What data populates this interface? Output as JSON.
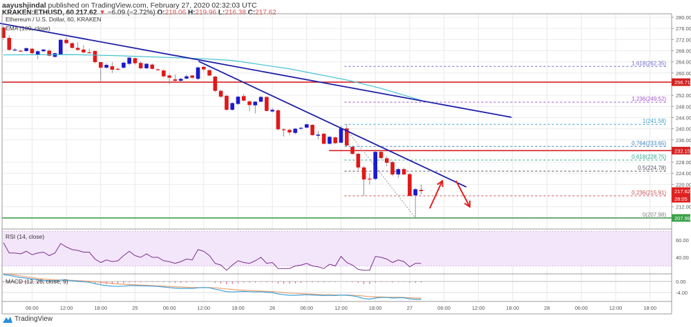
{
  "header": {
    "author": "aayushjindal",
    "published": "published on TradingView.com, February 27, 2020 02:32:03 UTC",
    "symbol": "KRAKEN:ETHUSD, 60",
    "last": "217.62",
    "change": "−6.09 (−2.72%)",
    "o_label": "O:",
    "o": "218.06",
    "h_label": "H:",
    "h": "219.96",
    "l_label": "L:",
    "l": "216.38",
    "c_label": "C:",
    "c": "217.62"
  },
  "footer": {
    "logo_text": "TradingView"
  },
  "chart_data": {
    "type": "candlestick",
    "title": "Ethereum / U.S. Dollar, 60, KRAKEN",
    "indicator_label": "EMA (100, close)",
    "ylim": [
      207,
      281
    ],
    "price_ticks": [
      212,
      220,
      224,
      228,
      236,
      240,
      244,
      248,
      252,
      260,
      264,
      268,
      272,
      276,
      280
    ],
    "candles_ohlc": [
      [
        276.3,
        277,
        272,
        272.6
      ],
      [
        272.6,
        273.5,
        268,
        268.3
      ],
      [
        268.4,
        269,
        267.8,
        268.4
      ],
      [
        268.0,
        268.3,
        267.6,
        267.9
      ],
      [
        267.9,
        269.2,
        267.5,
        268.9
      ],
      [
        268.7,
        269,
        266.8,
        267.1
      ],
      [
        266.6,
        268,
        265,
        267.8
      ],
      [
        267.8,
        268.6,
        267.5,
        268.4
      ],
      [
        268,
        268.5,
        266,
        266.2
      ],
      [
        265.8,
        267.3,
        265.5,
        267.1
      ],
      [
        266.6,
        272.2,
        266.4,
        271.9
      ],
      [
        271.9,
        272.8,
        270.5,
        270.7
      ],
      [
        270.7,
        271,
        268.8,
        269
      ],
      [
        269,
        271,
        268,
        268.3
      ],
      [
        268.4,
        270,
        267,
        267.4
      ],
      [
        267.4,
        268.8,
        267,
        267.35
      ],
      [
        267.9,
        268,
        263.5,
        263.9
      ],
      [
        263.9,
        264,
        257,
        261.9
      ],
      [
        261.9,
        263.5,
        261.5,
        262.9
      ],
      [
        262.4,
        264,
        260,
        261.2
      ],
      [
        261.5,
        261.9,
        261,
        261.45
      ],
      [
        261.9,
        264,
        261.5,
        263.7
      ],
      [
        263.3,
        265.8,
        262.8,
        265.5
      ],
      [
        265.3,
        265.5,
        263,
        263.5
      ],
      [
        263.6,
        264.2,
        261.4,
        261.7
      ],
      [
        261.7,
        263.5,
        261.4,
        263.3
      ],
      [
        263,
        263.4,
        261.2,
        261.5
      ],
      [
        261.3,
        261.6,
        260.8,
        261.0
      ],
      [
        260.9,
        261.3,
        258.4,
        258.8
      ],
      [
        259.1,
        259.6,
        256,
        258.3
      ],
      [
        257.7,
        259.5,
        256.5,
        257.2
      ],
      [
        257.2,
        258.2,
        256.8,
        257.9
      ],
      [
        258,
        259.5,
        257.8,
        258.8
      ],
      [
        259.1,
        259.3,
        258,
        258.3
      ],
      [
        257.9,
        262.3,
        257.4,
        262
      ],
      [
        262.2,
        262.5,
        260.6,
        261.3
      ],
      [
        261,
        261.3,
        258.8,
        259.1
      ],
      [
        258.7,
        259,
        253.2,
        253.6
      ],
      [
        253.6,
        254,
        251.2,
        251.5
      ],
      [
        251.8,
        252.2,
        246.5,
        246.8
      ],
      [
        246.8,
        249.5,
        246.5,
        249.2
      ],
      [
        248.9,
        251.8,
        248.6,
        251.5
      ],
      [
        251.7,
        252.5,
        249.8,
        250.1
      ],
      [
        249.8,
        250.2,
        246.2,
        248.5
      ],
      [
        248.4,
        249.9,
        245.5,
        249.7
      ],
      [
        249.7,
        251.8,
        249.5,
        251.4
      ],
      [
        251.4,
        251.6,
        246.2,
        246.4
      ],
      [
        246.2,
        247.5,
        245.8,
        246.8
      ],
      [
        246.6,
        247,
        239.4,
        239.8
      ],
      [
        239.8,
        240.2,
        237.2,
        239.6
      ],
      [
        239.6,
        240,
        237.8,
        238.7
      ],
      [
        238.5,
        240.3,
        238,
        240
      ],
      [
        240.1,
        240.6,
        239.5,
        240.3
      ],
      [
        240.4,
        241.8,
        240.2,
        241.6
      ],
      [
        241.4,
        241.6,
        237.5,
        237.7
      ],
      [
        237.5,
        239.2,
        236.2,
        237.9
      ],
      [
        238.2,
        238.5,
        234.4,
        234.6
      ],
      [
        234.6,
        237.3,
        234.4,
        237.1
      ],
      [
        236.9,
        237.2,
        234.6,
        234.8
      ],
      [
        235,
        241,
        234.8,
        240.1
      ],
      [
        240.1,
        241.6,
        233.5,
        234
      ],
      [
        233.5,
        234,
        230.6,
        231
      ],
      [
        231,
        231.4,
        225.2,
        226.1
      ],
      [
        226.1,
        226.6,
        215.9,
        221.8
      ],
      [
        222.1,
        224,
        220,
        221.95
      ],
      [
        222,
        232,
        221.5,
        231.7
      ],
      [
        231.7,
        232.2,
        229,
        229.5
      ],
      [
        229.4,
        230.2,
        226.5,
        227.8
      ],
      [
        228,
        228.5,
        223,
        223.6
      ],
      [
        223.6,
        226,
        222.4,
        225.5
      ],
      [
        225.5,
        226,
        223.4,
        223.6
      ],
      [
        223.7,
        224,
        215.7,
        215.9
      ],
      [
        216.1,
        218.8,
        207.98,
        218.3
      ],
      [
        218.06,
        219.96,
        216.38,
        217.62
      ]
    ],
    "ema100_points": [
      [
        0,
        266.5
      ],
      [
        12,
        266.6
      ],
      [
        20,
        266.2
      ],
      [
        34,
        265.2
      ],
      [
        40,
        264.5
      ],
      [
        50,
        261.5
      ],
      [
        60,
        257.5
      ],
      [
        66,
        254.5
      ],
      [
        73,
        250.2
      ]
    ],
    "time_labels": [
      {
        "text": "06:00",
        "h": 5
      },
      {
        "text": "12:00",
        "h": 11
      },
      {
        "text": "18:00",
        "h": 17
      },
      {
        "text": "25",
        "h": 23
      },
      {
        "text": "06:00",
        "h": 29
      },
      {
        "text": "12:00",
        "h": 35
      },
      {
        "text": "18:00",
        "h": 41
      },
      {
        "text": "26",
        "h": 47
      },
      {
        "text": "06:00",
        "h": 53
      },
      {
        "text": "12:00",
        "h": 59
      },
      {
        "text": "18:00",
        "h": 65
      },
      {
        "text": "27",
        "h": 71
      },
      {
        "text": "06:00",
        "h": 77
      },
      {
        "text": "12:00",
        "h": 83
      },
      {
        "text": "18:00",
        "h": 89
      },
      {
        "text": "28",
        "h": 95
      },
      {
        "text": "06:00",
        "h": 101
      },
      {
        "text": "12:00",
        "h": 107
      },
      {
        "text": "18:00",
        "h": 113
      }
    ],
    "trendlines": [
      {
        "name": "upper-trendline",
        "from": [
          -0.6,
          277.8
        ],
        "to": [
          88.8,
          244.1
        ],
        "color": "#1f1fa8"
      },
      {
        "name": "lower-trendline",
        "from": [
          34.1,
          264.2
        ],
        "to": [
          80.9,
          219.1
        ],
        "color": "#1f1fa8"
      }
    ],
    "horizontal_levels": [
      {
        "name": "resistance-256",
        "price": 256.71,
        "label": "256.71",
        "from": -1,
        "color": "#d42020"
      },
      {
        "name": "resistance-232",
        "price": 232.15,
        "label": "232.15",
        "from": 56.9,
        "color": "#d42020"
      },
      {
        "name": "support-208",
        "price": 207.99,
        "label": "207.99",
        "from": -1,
        "color": "#3aa048"
      }
    ],
    "current_price": {
      "label": "217.62",
      "countdown": "28:05",
      "price": 217.62,
      "color": "#e02020"
    },
    "fibonacci": {
      "from": 59.6,
      "to": 115,
      "levels": [
        {
          "label": "1.618(262.35)",
          "price": 262.35,
          "color": "#6a6ad0"
        },
        {
          "label": "1.236(249.52)",
          "price": 249.52,
          "color": "#a050c8"
        },
        {
          "label": "1(241.58)",
          "price": 241.58,
          "color": "#3aa0c8"
        },
        {
          "label": "0.764(233.65)",
          "price": 233.65,
          "color": "#3a80b8"
        },
        {
          "label": "0.618(228.75)",
          "price": 228.75,
          "color": "#30a890"
        },
        {
          "label": "0.5(224.78)",
          "price": 224.78,
          "color": "#505060"
        },
        {
          "label": "0.236(215.91)",
          "price": 215.91,
          "color": "#c85050"
        },
        {
          "label": "0(207.98)",
          "price": 207.98,
          "color": "#808080"
        }
      ],
      "diagonal": {
        "from": [
          59.8,
          240.1
        ],
        "to": [
          72,
          208
        ]
      }
    },
    "arrows": [
      {
        "name": "up-arrow",
        "from": [
          74.5,
          211.4
        ],
        "to": [
          76.7,
          221.3
        ]
      },
      {
        "name": "down-arrow",
        "from": [
          79.1,
          221.3
        ],
        "to": [
          81.5,
          212
        ]
      }
    ],
    "rsi": {
      "label": "RSI (14, close)",
      "ticks": [
        {
          "text": "60.00",
          "v": 60
        },
        {
          "text": "40.00",
          "v": 40
        }
      ],
      "band": [
        30,
        70
      ],
      "values": [
        57,
        45,
        45,
        44,
        47,
        43,
        45,
        46,
        42,
        45,
        56,
        52,
        49,
        48,
        46,
        46,
        38,
        34,
        37,
        35,
        36,
        42,
        47,
        42,
        40,
        44,
        40,
        40,
        36,
        35,
        33,
        35,
        38,
        37,
        49,
        47,
        42,
        33,
        31,
        25,
        31,
        36,
        34,
        33,
        36,
        40,
        33,
        34,
        27,
        27,
        27,
        30,
        31,
        33,
        30,
        29,
        27,
        32,
        30,
        41,
        34,
        31,
        26,
        25,
        25,
        41,
        40,
        38,
        34,
        37,
        35,
        29,
        33,
        33
      ]
    },
    "macd": {
      "label": "MACD (12, 26, close, 9)",
      "ticks": [
        {
          "text": "0.00",
          "v": 0
        },
        {
          "text": "-4.00",
          "v": -4
        }
      ],
      "macd": [
        2.5,
        2.2,
        1.8,
        1.4,
        1.2,
        0.9,
        0.6,
        0.4,
        0.3,
        0.3,
        0.5,
        0.5,
        0.3,
        0.1,
        -0.1,
        -0.3,
        -0.8,
        -1.2,
        -1.5,
        -1.7,
        -1.8,
        -1.7,
        -1.5,
        -1.5,
        -1.6,
        -1.6,
        -1.7,
        -1.8,
        -2.0,
        -2.2,
        -2.4,
        -2.5,
        -2.5,
        -2.5,
        -2.3,
        -2.2,
        -2.3,
        -2.8,
        -3.2,
        -3.7,
        -3.8,
        -3.7,
        -3.6,
        -3.7,
        -3.8,
        -3.7,
        -3.9,
        -4.0,
        -4.5,
        -4.8,
        -5.0,
        -5.0,
        -4.9,
        -4.8,
        -4.9,
        -5.0,
        -5.1,
        -5.0,
        -5.1,
        -4.9,
        -5.0,
        -5.2,
        -5.6,
        -6.2,
        -6.4,
        -6.0,
        -5.8,
        -5.8,
        -6.0,
        -5.9,
        -5.9,
        -6.3,
        -6.5,
        -6.5
      ],
      "signal": [
        2.8,
        2.6,
        2.3,
        2.0,
        1.7,
        1.4,
        1.1,
        0.9,
        0.7,
        0.6,
        0.5,
        0.5,
        0.4,
        0.3,
        0.2,
        0.1,
        -0.1,
        -0.3,
        -0.5,
        -0.7,
        -0.9,
        -1.0,
        -1.1,
        -1.2,
        -1.3,
        -1.4,
        -1.5,
        -1.6,
        -1.7,
        -1.8,
        -1.9,
        -2.0,
        -2.1,
        -2.2,
        -2.2,
        -2.2,
        -2.2,
        -2.3,
        -2.5,
        -2.7,
        -2.9,
        -3.1,
        -3.2,
        -3.3,
        -3.4,
        -3.5,
        -3.6,
        -3.7,
        -3.8,
        -4.0,
        -4.2,
        -4.3,
        -4.4,
        -4.5,
        -4.6,
        -4.7,
        -4.8,
        -4.8,
        -4.9,
        -4.9,
        -4.9,
        -5.0,
        -5.1,
        -5.3,
        -5.5,
        -5.6,
        -5.6,
        -5.7,
        -5.7,
        -5.7,
        -5.8,
        -5.9,
        -6.0,
        -6.1
      ]
    },
    "colors": {
      "up": "#1a1ad0",
      "down": "#e01818",
      "ema": "#40c0d0",
      "rsi": "#7a2e8a",
      "rsi_band": "#f3e6fb",
      "macd": "#3aa0d8",
      "signal": "#f0a070",
      "hist": "#d04060"
    }
  }
}
